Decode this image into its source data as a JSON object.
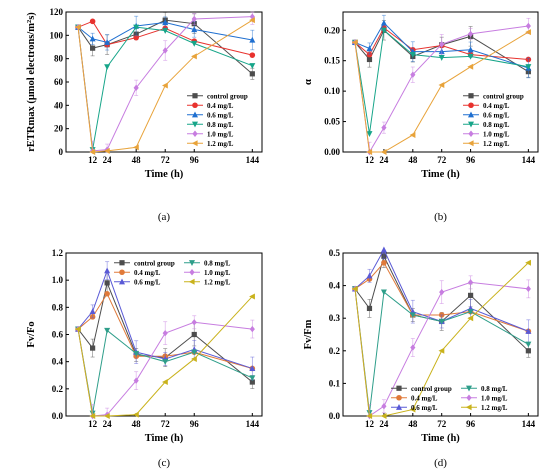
{
  "chart_data": [
    {
      "type": "line",
      "panel_label": "(a)",
      "ylabel": "rETRmax (μmol electrons/m²s)",
      "xlabel": "Time (h)",
      "x": [
        0,
        12,
        24,
        48,
        72,
        96,
        144
      ],
      "xticks": [
        12,
        24,
        48,
        72,
        96,
        144
      ],
      "xlim": [
        -10,
        152
      ],
      "ylim": [
        0,
        120
      ],
      "yticks": [
        0,
        20,
        40,
        60,
        80,
        100,
        120
      ],
      "ytick_labels": [
        "0",
        "20",
        "40",
        "60",
        "80",
        "100",
        "120"
      ],
      "legend_layout": "one-column",
      "legend_position": "bottom-right",
      "series": [
        {
          "name": "control group",
          "color": "#4d4d4d",
          "marker": "square",
          "values": [
            107,
            89,
            92,
            101,
            113,
            110,
            67
          ]
        },
        {
          "name": "0.4 mg/L",
          "color": "#e8322e",
          "marker": "circle",
          "values": [
            107,
            112,
            92,
            98,
            106,
            95,
            83
          ]
        },
        {
          "name": "0.6 mg/L",
          "color": "#1f6fd0",
          "marker": "triangle-up",
          "values": [
            107,
            97,
            94,
            108,
            111,
            105,
            96
          ]
        },
        {
          "name": "0.8 mg/L",
          "color": "#17a589",
          "marker": "triangle-down",
          "values": [
            107,
            2,
            73,
            107,
            104,
            93,
            74
          ]
        },
        {
          "name": "1.0 mg/L",
          "color": "#c77de0",
          "marker": "diamond",
          "values": [
            107,
            1,
            2,
            55,
            87,
            114,
            116
          ]
        },
        {
          "name": "1.2 mg/L",
          "color": "#e8a33a",
          "marker": "triangle-left",
          "values": [
            107,
            0,
            1,
            4,
            57,
            82,
            113
          ]
        }
      ]
    },
    {
      "type": "line",
      "panel_label": "(b)",
      "ylabel": "α",
      "xlabel": "Time (h)",
      "x": [
        0,
        12,
        24,
        48,
        72,
        96,
        144
      ],
      "xticks": [
        12,
        24,
        48,
        72,
        96,
        144
      ],
      "xlim": [
        -10,
        152
      ],
      "ylim": [
        0,
        0.23
      ],
      "yticks": [
        0,
        0.05,
        0.1,
        0.15,
        0.2
      ],
      "ytick_labels": [
        "0.00",
        "0.05",
        "0.10",
        "0.15",
        "0.20"
      ],
      "legend_layout": "one-column",
      "legend_position": "bottom-right",
      "series": [
        {
          "name": "control group",
          "color": "#4d4d4d",
          "marker": "square",
          "values": [
            0.18,
            0.152,
            0.2,
            0.157,
            0.176,
            0.19,
            0.132
          ]
        },
        {
          "name": "0.4 mg/L",
          "color": "#e8322e",
          "marker": "circle",
          "values": [
            0.18,
            0.16,
            0.204,
            0.168,
            0.175,
            0.16,
            0.152
          ]
        },
        {
          "name": "0.6 mg/L",
          "color": "#1f6fd0",
          "marker": "triangle-up",
          "values": [
            0.18,
            0.17,
            0.212,
            0.165,
            0.165,
            0.168,
            0.138
          ]
        },
        {
          "name": "0.8 mg/L",
          "color": "#17a589",
          "marker": "triangle-down",
          "values": [
            0.18,
            0.03,
            0.2,
            0.16,
            0.155,
            0.157,
            0.14
          ]
        },
        {
          "name": "1.0 mg/L",
          "color": "#c77de0",
          "marker": "diamond",
          "values": [
            0.18,
            0.0,
            0.04,
            0.127,
            0.177,
            0.194,
            0.207
          ]
        },
        {
          "name": "1.2 mg/L",
          "color": "#e8a33a",
          "marker": "triangle-left",
          "values": [
            0.18,
            0.0,
            0.0,
            0.028,
            0.11,
            0.14,
            0.197
          ]
        }
      ]
    },
    {
      "type": "line",
      "panel_label": "(c)",
      "ylabel": "Fv/Fo",
      "xlabel": "Time (h)",
      "x": [
        0,
        12,
        24,
        48,
        72,
        96,
        144
      ],
      "xticks": [
        12,
        24,
        48,
        72,
        96,
        144
      ],
      "xlim": [
        -10,
        152
      ],
      "ylim": [
        0,
        1.2
      ],
      "yticks": [
        0,
        0.2,
        0.4,
        0.6,
        0.8,
        1.0,
        1.2
      ],
      "ytick_labels": [
        "0.0",
        "0.2",
        "0.4",
        "0.6",
        "0.8",
        "1.0",
        "1.2"
      ],
      "legend_layout": "two-column",
      "legend_position": "top-right",
      "series": [
        {
          "name": "control group",
          "color": "#4d4d4d",
          "marker": "square",
          "values": [
            0.64,
            0.5,
            0.98,
            0.45,
            0.43,
            0.6,
            0.25
          ]
        },
        {
          "name": "0.4 mg/L",
          "color": "#e07a3a",
          "marker": "circle",
          "values": [
            0.64,
            0.73,
            0.9,
            0.44,
            0.44,
            0.47,
            0.35
          ]
        },
        {
          "name": "0.6 mg/L",
          "color": "#5a5ad6",
          "marker": "triangle-up",
          "values": [
            0.64,
            0.77,
            1.07,
            0.47,
            0.42,
            0.49,
            0.35
          ]
        },
        {
          "name": "0.8 mg/L",
          "color": "#2e9e8a",
          "marker": "triangle-down",
          "values": [
            0.64,
            0.02,
            0.63,
            0.46,
            0.4,
            0.47,
            0.28
          ]
        },
        {
          "name": "1.0 mg/L",
          "color": "#c77de0",
          "marker": "diamond",
          "values": [
            0.64,
            0.0,
            0.01,
            0.26,
            0.61,
            0.69,
            0.64
          ]
        },
        {
          "name": "1.2 mg/L",
          "color": "#c9b21c",
          "marker": "triangle-left",
          "values": [
            0.64,
            0.0,
            0.0,
            0.01,
            0.25,
            0.42,
            0.88
          ]
        }
      ]
    },
    {
      "type": "line",
      "panel_label": "(d)",
      "ylabel": "Fv/Fm",
      "xlabel": "Time (h)",
      "x": [
        0,
        12,
        24,
        48,
        72,
        96,
        144
      ],
      "xticks": [
        12,
        24,
        48,
        72,
        96,
        144
      ],
      "xlim": [
        -10,
        152
      ],
      "ylim": [
        0,
        0.5
      ],
      "yticks": [
        0,
        0.1,
        0.2,
        0.3,
        0.4,
        0.5
      ],
      "ytick_labels": [
        "0.0",
        "0.1",
        "0.2",
        "0.3",
        "0.4",
        "0.5"
      ],
      "legend_layout": "two-column",
      "legend_position": "bottom-right",
      "series": [
        {
          "name": "control group",
          "color": "#4d4d4d",
          "marker": "square",
          "values": [
            0.39,
            0.33,
            0.49,
            0.31,
            0.29,
            0.37,
            0.2
          ]
        },
        {
          "name": "0.4 mg/L",
          "color": "#e07a3a",
          "marker": "circle",
          "values": [
            0.39,
            0.42,
            0.47,
            0.31,
            0.31,
            0.32,
            0.26
          ]
        },
        {
          "name": "0.6 mg/L",
          "color": "#5a5ad6",
          "marker": "triangle-up",
          "values": [
            0.39,
            0.43,
            0.51,
            0.32,
            0.29,
            0.33,
            0.26
          ]
        },
        {
          "name": "0.8 mg/L",
          "color": "#2e9e8a",
          "marker": "triangle-down",
          "values": [
            0.39,
            0.01,
            0.38,
            0.31,
            0.29,
            0.32,
            0.22
          ]
        },
        {
          "name": "1.0 mg/L",
          "color": "#c77de0",
          "marker": "diamond",
          "values": [
            0.39,
            0.0,
            0.03,
            0.21,
            0.38,
            0.41,
            0.39
          ]
        },
        {
          "name": "1.2 mg/L",
          "color": "#c9b21c",
          "marker": "triangle-left",
          "values": [
            0.39,
            0.0,
            0.0,
            0.02,
            0.2,
            0.3,
            0.47
          ]
        }
      ]
    }
  ]
}
